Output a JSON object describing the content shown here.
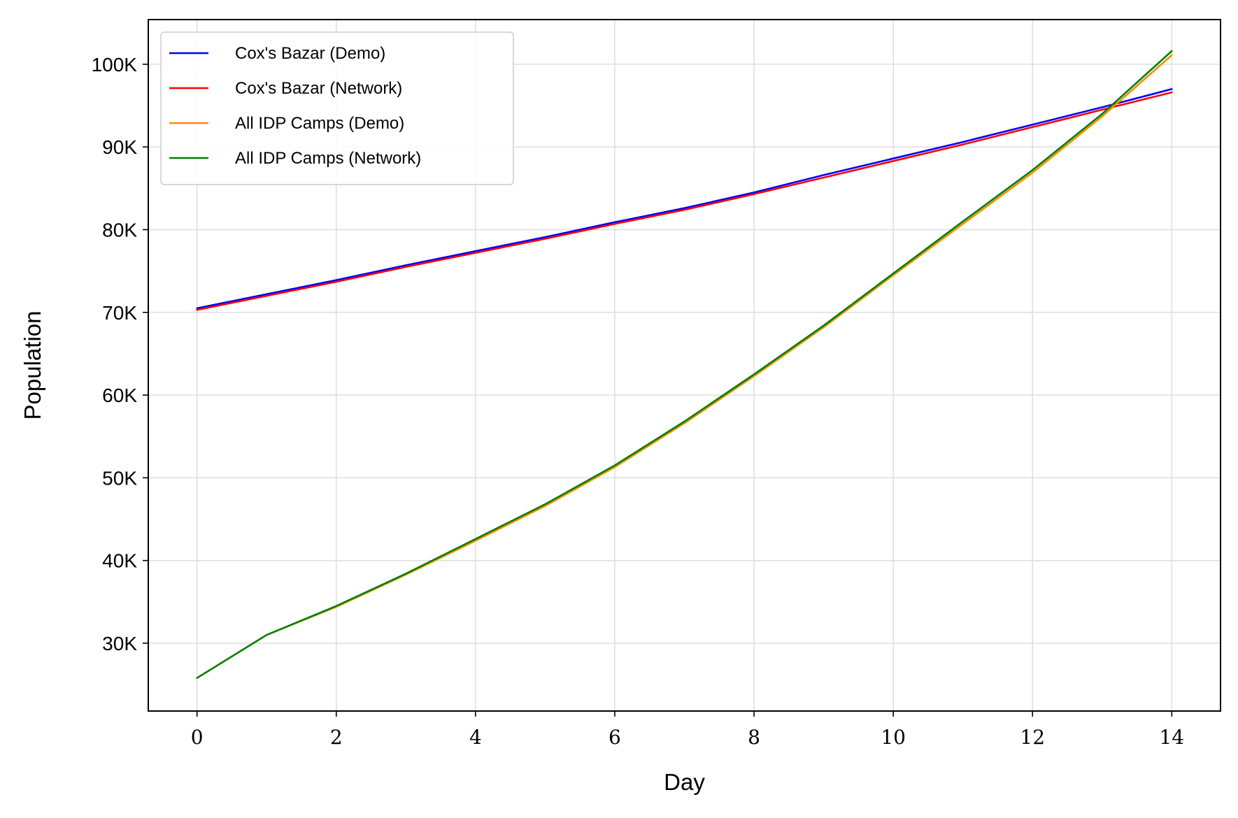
{
  "chart_data": {
    "type": "line",
    "title": "",
    "xlabel": "Day",
    "ylabel": "Population",
    "xlim": [
      -0.7,
      14.7
    ],
    "ylim": [
      21800,
      105400
    ],
    "xticks": [
      0,
      2,
      4,
      6,
      8,
      10,
      12,
      14
    ],
    "xtick_labels": [
      "0",
      "2",
      "4",
      "6",
      "8",
      "10",
      "12",
      "14"
    ],
    "yticks": [
      30000,
      40000,
      50000,
      60000,
      70000,
      80000,
      90000,
      100000
    ],
    "ytick_labels": [
      "30K",
      "40K",
      "50K",
      "60K",
      "70K",
      "80K",
      "90K",
      "100K"
    ],
    "grid": true,
    "legend_position": "top-left",
    "x": [
      0,
      1,
      2,
      3,
      4,
      5,
      6,
      7,
      8,
      9,
      10,
      11,
      12,
      13,
      14
    ],
    "series": [
      {
        "name": "Cox's Bazar (Demo)",
        "color": "#0000ff",
        "values": [
          70500,
          72200,
          73900,
          75700,
          77400,
          79100,
          80900,
          82600,
          84500,
          86600,
          88600,
          90600,
          92700,
          94800,
          97000
        ]
      },
      {
        "name": "Cox's Bazar (Network)",
        "color": "#ff0000",
        "values": [
          70300,
          72000,
          73700,
          75500,
          77200,
          78900,
          80700,
          82400,
          84300,
          86300,
          88300,
          90300,
          92400,
          94500,
          96600
        ]
      },
      {
        "name": "All IDP Camps (Demo)",
        "color": "#ff8c00",
        "values": [
          25800,
          31000,
          34400,
          38300,
          42400,
          46600,
          51300,
          56600,
          62300,
          68200,
          74500,
          80700,
          86900,
          93700,
          101100
        ]
      },
      {
        "name": "All IDP Camps (Network)",
        "color": "#008000",
        "values": [
          25800,
          31000,
          34500,
          38400,
          42600,
          46800,
          51500,
          56800,
          62500,
          68400,
          74700,
          81000,
          87200,
          94000,
          101600
        ]
      }
    ]
  }
}
